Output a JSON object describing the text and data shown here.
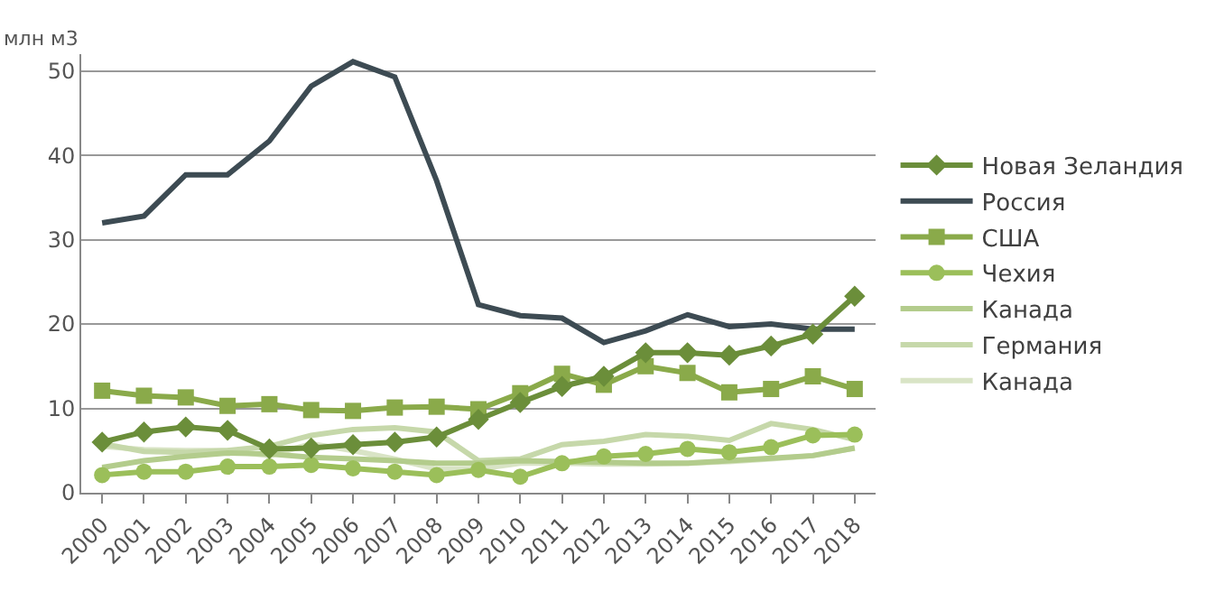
{
  "chart_data": {
    "type": "line",
    "ylabel": "млн м3",
    "categories": [
      "2000",
      "2001",
      "2002",
      "2003",
      "2004",
      "2005",
      "2006",
      "2007",
      "2008",
      "2009",
      "2010",
      "2011",
      "2012",
      "2013",
      "2014",
      "2015",
      "2016",
      "2017",
      "2018"
    ],
    "ylim": [
      0,
      52
    ],
    "yticks": [
      0,
      10,
      20,
      30,
      40,
      50
    ],
    "grid": "y",
    "legend": "right",
    "series": [
      {
        "name": "Новая Зеландия",
        "color": "#6b8e3a",
        "marker": "diamond",
        "values": [
          6,
          7.2,
          7.8,
          7.4,
          5.2,
          5.3,
          5.7,
          6,
          6.6,
          8.7,
          10.7,
          12.6,
          13.8,
          16.6,
          16.6,
          16.3,
          17.4,
          18.8,
          23.3
        ]
      },
      {
        "name": "Россия",
        "color": "#3d4b53",
        "marker": "none",
        "values": [
          32,
          32.8,
          37.7,
          37.7,
          41.7,
          48.2,
          51.1,
          49.3,
          37,
          22.3,
          21,
          20.7,
          17.8,
          19.2,
          21.1,
          19.7,
          20,
          19.4,
          19.4
        ]
      },
      {
        "name": "США",
        "color": "#8aaa4a",
        "marker": "square",
        "values": [
          12.1,
          11.5,
          11.3,
          10.3,
          10.5,
          9.8,
          9.7,
          10.1,
          10.2,
          9.9,
          11.8,
          14.1,
          12.8,
          15,
          14.2,
          11.9,
          12.3,
          13.8,
          12.3
        ]
      },
      {
        "name": "Чехия",
        "color": "#9bbf5a",
        "marker": "circle",
        "values": [
          2.1,
          2.5,
          2.5,
          3.1,
          3.1,
          3.3,
          2.9,
          2.5,
          2.1,
          2.7,
          1.9,
          3.5,
          4.3,
          4.6,
          5.2,
          4.8,
          5.4,
          6.8,
          6.9
        ]
      },
      {
        "name": "Канада",
        "color": "#b3cc8c",
        "marker": "none",
        "values": [
          3.0,
          3.8,
          4.3,
          4.7,
          4.6,
          4.2,
          4.0,
          3.8,
          3.5,
          3.5,
          3.8,
          3.7,
          3.6,
          3.5,
          3.5,
          3.8,
          4.1,
          4.4,
          5.3
        ]
      },
      {
        "name": "Германия",
        "color": "#c6d8aa",
        "marker": "none",
        "values": [
          5.8,
          4.9,
          4.8,
          5.0,
          5.5,
          6.8,
          7.5,
          7.7,
          7.2,
          3.8,
          4.0,
          5.7,
          6.1,
          6.9,
          6.7,
          6.2,
          8.2,
          7.5,
          6.3
        ]
      },
      {
        "name": "Канада",
        "color": "#d9e4c6",
        "marker": "none",
        "values": [
          5.5,
          5.1,
          5.0,
          5.0,
          4.4,
          5.8,
          5.0,
          4.0,
          2.8,
          2.8,
          3.5,
          3.5,
          3.4,
          3.4,
          3.5,
          3.7,
          4.0,
          4.4,
          5.3
        ]
      }
    ]
  }
}
